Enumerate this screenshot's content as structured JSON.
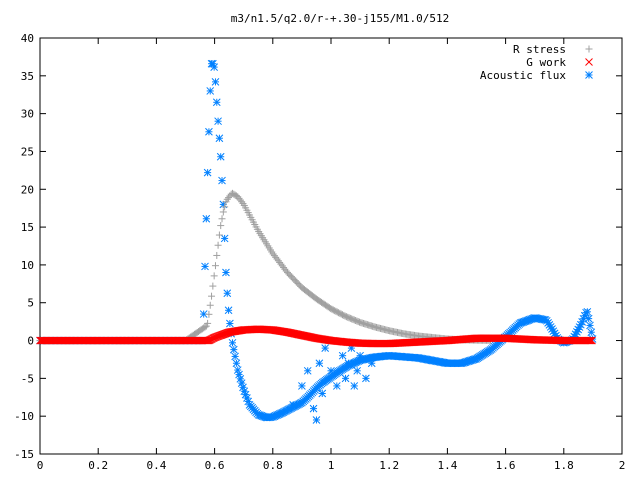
{
  "chart_data": {
    "type": "scatter",
    "title": "m3/n1.5/q2.0/r-+.30-j155/M1.0/512",
    "xlabel": "",
    "ylabel": "",
    "xlim": [
      0,
      2
    ],
    "ylim": [
      -15,
      40
    ],
    "x_ticks": [
      "0",
      "0.2",
      "0.4",
      "0.6",
      "0.8",
      "1",
      "1.2",
      "1.4",
      "1.6",
      "1.8",
      "2"
    ],
    "y_ticks": [
      "40",
      "35",
      "30",
      "25",
      "20",
      "15",
      "10",
      "5",
      "0",
      "-5",
      "-10",
      "-15"
    ],
    "grid": false,
    "legend_position": "top-right",
    "series": [
      {
        "name": "R stress",
        "marker": "plus",
        "color": "#a0a0a0",
        "x": [
          0,
          0.1,
          0.2,
          0.3,
          0.4,
          0.5,
          0.575,
          0.59,
          0.6,
          0.61,
          0.62,
          0.63,
          0.64,
          0.66,
          0.68,
          0.7,
          0.75,
          0.8,
          0.85,
          0.9,
          0.95,
          1.0,
          1.05,
          1.1,
          1.15,
          1.2,
          1.25,
          1.3,
          1.35,
          1.4,
          1.45,
          1.5,
          1.55,
          1.6,
          1.65,
          1.7,
          1.75,
          1.8,
          1.85,
          1.9
        ],
        "y": [
          0,
          0,
          0,
          0,
          0,
          0,
          2,
          6,
          9,
          12,
          15,
          17,
          18.5,
          19.5,
          19,
          18,
          14.5,
          11.5,
          9,
          7,
          5.5,
          4.2,
          3.2,
          2.4,
          1.8,
          1.3,
          0.9,
          0.6,
          0.4,
          0.2,
          0.1,
          0.05,
          0.02,
          0,
          0,
          0,
          0,
          0,
          0,
          0
        ]
      },
      {
        "name": "G work",
        "marker": "cross",
        "color": "#ff0000",
        "x": [
          0,
          0.2,
          0.4,
          0.55,
          0.58,
          0.6,
          0.65,
          0.7,
          0.75,
          0.8,
          0.85,
          0.9,
          0.95,
          1.0,
          1.05,
          1.1,
          1.15,
          1.2,
          1.3,
          1.4,
          1.5,
          1.6,
          1.7,
          1.8,
          1.9
        ],
        "y": [
          0,
          0,
          0,
          0,
          0,
          0.4,
          1.1,
          1.4,
          1.5,
          1.4,
          1.1,
          0.7,
          0.3,
          0,
          -0.2,
          -0.35,
          -0.4,
          -0.4,
          -0.2,
          0,
          0.3,
          0.3,
          0.1,
          0,
          0
        ]
      },
      {
        "name": "Acoustic flux",
        "marker": "star",
        "color": "#0080ff",
        "x": [
          0,
          0.1,
          0.2,
          0.3,
          0.4,
          0.5,
          0.56,
          0.575,
          0.585,
          0.59,
          0.6,
          0.61,
          0.62,
          0.63,
          0.64,
          0.65,
          0.66,
          0.67,
          0.68,
          0.7,
          0.72,
          0.75,
          0.78,
          0.8,
          0.83,
          0.86,
          0.9,
          0.92,
          0.95,
          0.97,
          1.0,
          1.03,
          1.06,
          1.1,
          1.15,
          1.2,
          1.3,
          1.4,
          1.45,
          1.5,
          1.55,
          1.6,
          1.65,
          1.7,
          1.74,
          1.76,
          1.78,
          1.8,
          1.83,
          1.86,
          1.88,
          1.9
        ],
        "y": [
          0,
          0,
          0,
          0,
          0,
          0,
          0,
          21,
          33,
          37,
          36,
          30,
          25,
          18,
          8,
          3,
          0,
          -2,
          -4,
          -6.5,
          -8.5,
          -9.8,
          -10.2,
          -10.1,
          -9.6,
          -9,
          -8.2,
          -7.5,
          -6.3,
          -5.6,
          -4.8,
          -4,
          -3.3,
          -2.6,
          -2.2,
          -2,
          -2.3,
          -3,
          -3,
          -2.4,
          -1.2,
          0.5,
          2.3,
          3,
          2.7,
          1.5,
          0.2,
          -0.3,
          0.1,
          2.2,
          4,
          0
        ],
        "scatter_cloud_x": [
          0.87,
          0.9,
          0.92,
          0.94,
          0.95,
          0.96,
          0.97,
          0.98,
          1.0,
          1.02,
          1.04,
          1.05,
          1.06,
          1.07,
          1.08,
          1.09,
          1.1,
          1.12,
          1.14
        ],
        "scatter_cloud_y": [
          -8.5,
          -6,
          -4,
          -9,
          -10.5,
          -3,
          -7,
          -1,
          -4,
          -6,
          -2,
          -5,
          -3,
          -1,
          -6,
          -4,
          -2,
          -5,
          -3
        ]
      }
    ]
  }
}
